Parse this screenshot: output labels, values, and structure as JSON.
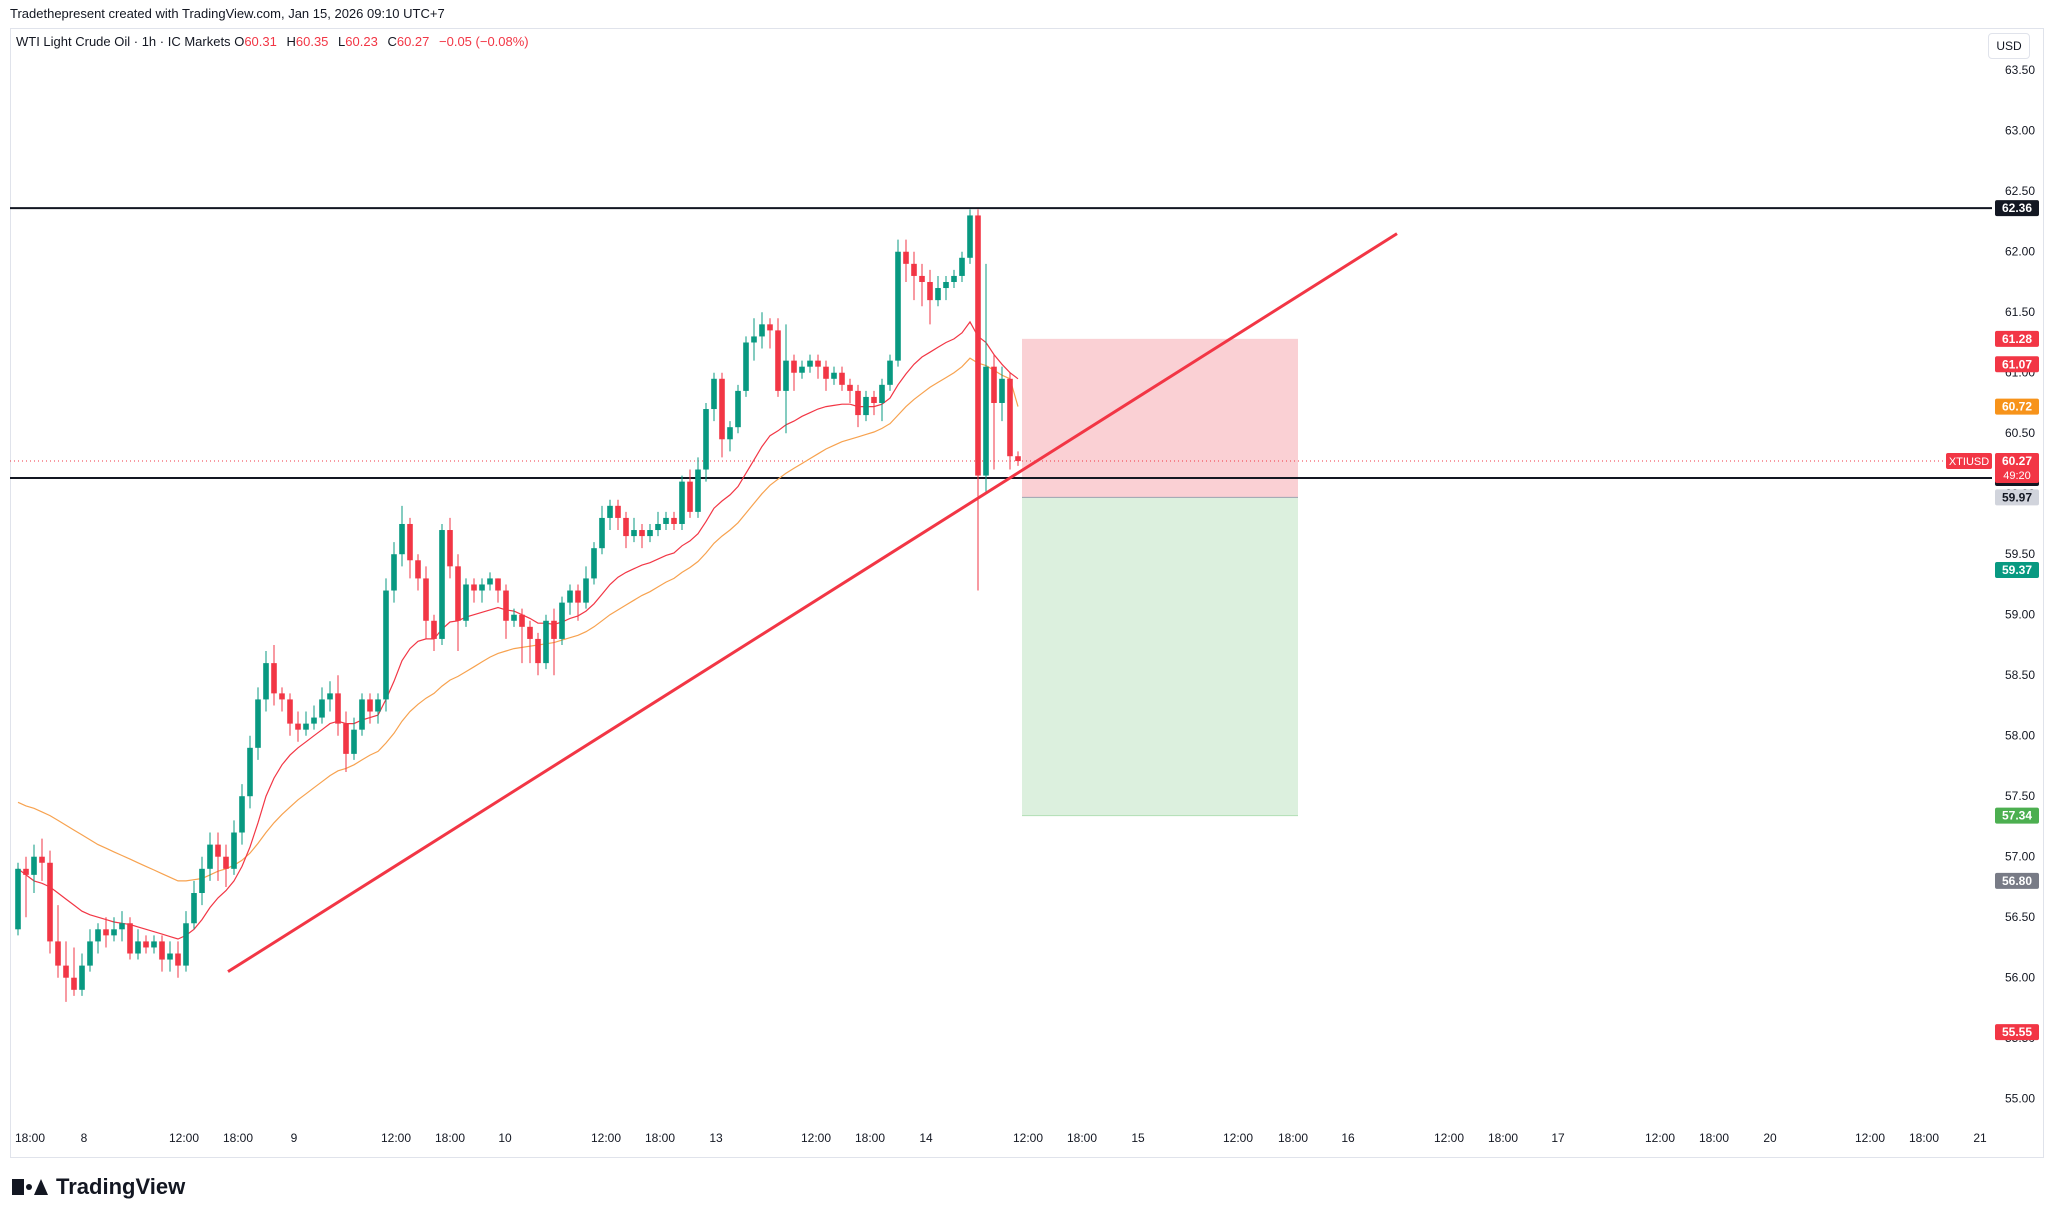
{
  "header": {
    "caption": "Tradethepresent created with TradingView.com, Jan 15, 2026 09:10 UTC+7"
  },
  "symbol": {
    "name": "WTI Light Crude Oil · 1h · IC Markets",
    "o_label": "O",
    "o_value": "60.31",
    "h_label": "H",
    "h_value": "60.35",
    "l_label": "L",
    "l_value": "60.23",
    "c_label": "C",
    "c_value": "60.27",
    "change": "−0.05 (−0.08%)"
  },
  "currency": "USD",
  "footer": {
    "brand": "TradingView",
    "logo_icon": "tradingview-logo-icon"
  },
  "colors": {
    "up": "#089981",
    "down": "#f23645",
    "trendline": "#f23645",
    "level_line": "#131722",
    "stop_zone": "#f9c8cc",
    "target_zone": "#dcf0de",
    "ma_fast": "#f23645",
    "ma_slow": "#f7a24f"
  },
  "chart_data": {
    "type": "candlestick",
    "timeframe": "1h",
    "ylim": [
      54.7,
      63.75
    ],
    "y_ticks": [
      "63.50",
      "63.00",
      "62.50",
      "62.00",
      "61.50",
      "61.00",
      "60.50",
      "60.00",
      "59.50",
      "59.00",
      "58.50",
      "58.00",
      "57.50",
      "57.00",
      "56.50",
      "56.00",
      "55.50",
      "55.00"
    ],
    "x_ticks": [
      "18:00",
      "8",
      "12:00",
      "18:00",
      "9",
      "12:00",
      "18:00",
      "10",
      "12:00",
      "18:00",
      "13",
      "12:00",
      "18:00",
      "14",
      "12:00",
      "18:00",
      "15",
      "12:00",
      "18:00",
      "16",
      "12:00",
      "18:00",
      "17",
      "12:00",
      "18:00",
      "20",
      "12:00",
      "18:00",
      "21"
    ],
    "candles": [
      [
        56.4,
        56.9,
        56.35,
        56.95
      ],
      [
        56.9,
        56.85,
        56.5,
        57.0
      ],
      [
        56.85,
        57.0,
        56.7,
        57.1
      ],
      [
        57.0,
        56.95,
        56.8,
        57.15
      ],
      [
        56.95,
        56.3,
        56.2,
        57.05
      ],
      [
        56.3,
        56.1,
        56.0,
        56.6
      ],
      [
        56.1,
        56.0,
        55.8,
        56.3
      ],
      [
        56.0,
        55.9,
        55.85,
        56.25
      ],
      [
        55.9,
        56.1,
        55.85,
        56.2
      ],
      [
        56.1,
        56.3,
        56.05,
        56.4
      ],
      [
        56.3,
        56.4,
        56.2,
        56.45
      ],
      [
        56.4,
        56.35,
        56.25,
        56.5
      ],
      [
        56.35,
        56.4,
        56.3,
        56.5
      ],
      [
        56.4,
        56.45,
        56.3,
        56.55
      ],
      [
        56.45,
        56.2,
        56.15,
        56.5
      ],
      [
        56.2,
        56.3,
        56.15,
        56.4
      ],
      [
        56.3,
        56.25,
        56.2,
        56.35
      ],
      [
        56.25,
        56.3,
        56.2,
        56.35
      ],
      [
        56.3,
        56.15,
        56.05,
        56.35
      ],
      [
        56.15,
        56.2,
        56.05,
        56.3
      ],
      [
        56.2,
        56.1,
        56.0,
        56.3
      ],
      [
        56.1,
        56.45,
        56.05,
        56.55
      ],
      [
        56.45,
        56.7,
        56.4,
        56.8
      ],
      [
        56.7,
        56.9,
        56.6,
        57.0
      ],
      [
        56.9,
        57.1,
        56.8,
        57.2
      ],
      [
        57.1,
        57.0,
        56.8,
        57.2
      ],
      [
        57.0,
        56.9,
        56.75,
        57.1
      ],
      [
        56.9,
        57.2,
        56.85,
        57.3
      ],
      [
        57.2,
        57.5,
        57.1,
        57.6
      ],
      [
        57.5,
        57.9,
        57.4,
        58.0
      ],
      [
        57.9,
        58.3,
        57.8,
        58.4
      ],
      [
        58.3,
        58.6,
        58.2,
        58.7
      ],
      [
        58.6,
        58.35,
        58.25,
        58.75
      ],
      [
        58.35,
        58.3,
        58.2,
        58.4
      ],
      [
        58.3,
        58.1,
        58.0,
        58.35
      ],
      [
        58.1,
        58.05,
        57.95,
        58.2
      ],
      [
        58.05,
        58.1,
        58.0,
        58.2
      ],
      [
        58.1,
        58.15,
        58.05,
        58.25
      ],
      [
        58.15,
        58.3,
        58.1,
        58.4
      ],
      [
        58.3,
        58.35,
        58.2,
        58.45
      ],
      [
        58.35,
        58.1,
        58.0,
        58.5
      ],
      [
        58.1,
        57.85,
        57.7,
        58.2
      ],
      [
        57.85,
        58.05,
        57.8,
        58.15
      ],
      [
        58.05,
        58.3,
        58.0,
        58.35
      ],
      [
        58.3,
        58.2,
        58.1,
        58.35
      ],
      [
        58.2,
        58.3,
        58.1,
        58.35
      ],
      [
        58.3,
        59.2,
        58.2,
        59.3
      ],
      [
        59.2,
        59.5,
        59.1,
        59.6
      ],
      [
        59.5,
        59.75,
        59.4,
        59.9
      ],
      [
        59.75,
        59.45,
        59.3,
        59.8
      ],
      [
        59.45,
        59.3,
        59.2,
        59.5
      ],
      [
        59.3,
        58.95,
        58.8,
        59.4
      ],
      [
        58.95,
        58.8,
        58.7,
        59.0
      ],
      [
        58.8,
        59.7,
        58.75,
        59.75
      ],
      [
        59.7,
        59.4,
        59.3,
        59.8
      ],
      [
        59.4,
        58.95,
        58.7,
        59.5
      ],
      [
        58.95,
        59.25,
        58.9,
        59.3
      ],
      [
        59.25,
        59.2,
        59.1,
        59.3
      ],
      [
        59.2,
        59.25,
        59.1,
        59.3
      ],
      [
        59.25,
        59.3,
        59.2,
        59.35
      ],
      [
        59.3,
        59.2,
        59.1,
        59.3
      ],
      [
        59.2,
        58.95,
        58.8,
        59.25
      ],
      [
        58.95,
        59.0,
        58.9,
        59.05
      ],
      [
        59.0,
        58.9,
        58.6,
        59.05
      ],
      [
        58.9,
        58.8,
        58.6,
        58.95
      ],
      [
        58.8,
        58.6,
        58.5,
        58.85
      ],
      [
        58.6,
        58.95,
        58.55,
        59.0
      ],
      [
        58.95,
        58.8,
        58.5,
        59.05
      ],
      [
        58.8,
        59.1,
        58.75,
        59.15
      ],
      [
        59.1,
        59.2,
        59.0,
        59.25
      ],
      [
        59.2,
        59.1,
        58.95,
        59.25
      ],
      [
        59.1,
        59.3,
        59.05,
        59.4
      ],
      [
        59.3,
        59.55,
        59.25,
        59.6
      ],
      [
        59.55,
        59.8,
        59.5,
        59.9
      ],
      [
        59.8,
        59.9,
        59.7,
        59.95
      ],
      [
        59.9,
        59.8,
        59.7,
        59.95
      ],
      [
        59.8,
        59.65,
        59.55,
        59.85
      ],
      [
        59.65,
        59.7,
        59.6,
        59.8
      ],
      [
        59.7,
        59.65,
        59.55,
        59.75
      ],
      [
        59.65,
        59.7,
        59.6,
        59.75
      ],
      [
        59.7,
        59.75,
        59.65,
        59.85
      ],
      [
        59.75,
        59.8,
        59.7,
        59.85
      ],
      [
        59.8,
        59.75,
        59.7,
        59.85
      ],
      [
        59.75,
        60.1,
        59.7,
        60.15
      ],
      [
        60.1,
        59.85,
        59.8,
        60.2
      ],
      [
        59.85,
        60.2,
        59.8,
        60.3
      ],
      [
        60.2,
        60.7,
        60.1,
        60.75
      ],
      [
        60.7,
        60.95,
        60.6,
        61.0
      ],
      [
        60.95,
        60.45,
        60.3,
        61.0
      ],
      [
        60.45,
        60.55,
        60.35,
        60.6
      ],
      [
        60.55,
        60.85,
        60.5,
        60.9
      ],
      [
        60.85,
        61.25,
        60.8,
        61.3
      ],
      [
        61.25,
        61.3,
        61.1,
        61.45
      ],
      [
        61.3,
        61.4,
        61.2,
        61.5
      ],
      [
        61.4,
        61.35,
        61.2,
        61.45
      ],
      [
        61.35,
        60.85,
        60.8,
        61.45
      ],
      [
        60.85,
        61.1,
        60.5,
        61.4
      ],
      [
        61.1,
        61.0,
        60.85,
        61.15
      ],
      [
        61.0,
        61.05,
        60.95,
        61.1
      ],
      [
        61.05,
        61.1,
        61.0,
        61.15
      ],
      [
        61.1,
        61.05,
        60.95,
        61.15
      ],
      [
        61.05,
        60.95,
        60.85,
        61.1
      ],
      [
        60.95,
        61.0,
        60.9,
        61.05
      ],
      [
        61.0,
        60.9,
        60.85,
        61.05
      ],
      [
        60.9,
        60.85,
        60.75,
        60.95
      ],
      [
        60.85,
        60.65,
        60.55,
        60.9
      ],
      [
        60.65,
        60.8,
        60.6,
        60.85
      ],
      [
        60.8,
        60.75,
        60.65,
        60.85
      ],
      [
        60.75,
        60.9,
        60.6,
        60.95
      ],
      [
        60.9,
        61.1,
        60.85,
        61.15
      ],
      [
        61.1,
        62.0,
        61.05,
        62.1
      ],
      [
        62.0,
        61.9,
        61.75,
        62.1
      ],
      [
        61.9,
        61.8,
        61.6,
        62.0
      ],
      [
        61.8,
        61.75,
        61.55,
        61.9
      ],
      [
        61.75,
        61.6,
        61.4,
        61.85
      ],
      [
        61.6,
        61.7,
        61.55,
        61.8
      ],
      [
        61.7,
        61.75,
        61.6,
        61.8
      ],
      [
        61.75,
        61.8,
        61.7,
        61.85
      ],
      [
        61.8,
        61.95,
        61.75,
        62.0
      ],
      [
        61.95,
        62.3,
        61.9,
        62.35
      ],
      [
        62.3,
        60.15,
        59.2,
        62.35
      ],
      [
        60.15,
        61.05,
        60.0,
        61.9
      ],
      [
        61.05,
        60.75,
        60.2,
        61.15
      ],
      [
        60.75,
        60.95,
        60.6,
        61.05
      ],
      [
        60.95,
        60.31,
        60.2,
        61.0
      ],
      [
        60.31,
        60.27,
        60.23,
        60.35
      ]
    ],
    "ma_fast": [
      56.9,
      56.85,
      56.8,
      56.78,
      56.75,
      56.7,
      56.65,
      56.6,
      56.55,
      56.52,
      56.5,
      56.48,
      56.46,
      56.45,
      56.44,
      56.42,
      56.4,
      56.38,
      56.36,
      56.34,
      56.32,
      56.35,
      56.4,
      56.48,
      56.58,
      56.66,
      56.72,
      56.8,
      56.92,
      57.08,
      57.28,
      57.5,
      57.65,
      57.76,
      57.84,
      57.9,
      57.95,
      58.0,
      58.05,
      58.1,
      58.12,
      58.1,
      58.1,
      58.13,
      58.15,
      58.17,
      58.3,
      58.45,
      58.62,
      58.72,
      58.78,
      58.8,
      58.8,
      58.88,
      58.94,
      58.95,
      58.98,
      59.0,
      59.02,
      59.04,
      59.06,
      59.04,
      59.03,
      59.0,
      58.97,
      58.93,
      58.93,
      58.92,
      58.94,
      58.97,
      58.99,
      59.03,
      59.09,
      59.17,
      59.25,
      59.31,
      59.35,
      59.38,
      59.41,
      59.43,
      59.46,
      59.49,
      59.51,
      59.57,
      59.61,
      59.67,
      59.77,
      59.88,
      59.94,
      59.99,
      60.06,
      60.17,
      60.28,
      60.39,
      60.48,
      60.52,
      60.57,
      60.6,
      60.64,
      60.67,
      60.7,
      60.72,
      60.73,
      60.74,
      60.74,
      60.72,
      60.72,
      60.72,
      60.74,
      60.79,
      60.9,
      60.99,
      61.07,
      61.13,
      61.17,
      61.21,
      61.25,
      61.28,
      61.33,
      61.42,
      61.3,
      61.25,
      61.15,
      61.07,
      61.0,
      60.95
    ],
    "ma_slow": [
      57.45,
      57.42,
      57.4,
      57.37,
      57.34,
      57.3,
      57.26,
      57.22,
      57.18,
      57.14,
      57.1,
      57.07,
      57.04,
      57.01,
      56.98,
      56.95,
      56.92,
      56.89,
      56.86,
      56.83,
      56.8,
      56.8,
      56.81,
      56.82,
      56.85,
      56.88,
      56.9,
      56.93,
      56.97,
      57.03,
      57.11,
      57.2,
      57.28,
      57.35,
      57.41,
      57.47,
      57.52,
      57.57,
      57.62,
      57.67,
      57.71,
      57.73,
      57.76,
      57.8,
      57.84,
      57.87,
      57.94,
      58.02,
      58.12,
      58.2,
      58.26,
      58.31,
      58.35,
      58.41,
      58.46,
      58.49,
      58.53,
      58.57,
      58.61,
      58.65,
      58.68,
      58.7,
      58.72,
      58.73,
      58.74,
      58.75,
      58.76,
      58.77,
      58.79,
      58.81,
      58.83,
      58.86,
      58.9,
      58.95,
      59.0,
      59.04,
      59.08,
      59.12,
      59.16,
      59.19,
      59.23,
      59.27,
      59.3,
      59.35,
      59.39,
      59.44,
      59.51,
      59.59,
      59.65,
      59.7,
      59.76,
      59.84,
      59.92,
      60.0,
      60.07,
      60.12,
      60.17,
      60.21,
      60.25,
      60.29,
      60.33,
      60.37,
      60.4,
      60.43,
      60.45,
      60.47,
      60.49,
      60.51,
      60.54,
      60.58,
      60.65,
      60.72,
      60.78,
      60.83,
      60.88,
      60.92,
      60.96,
      61.0,
      61.05,
      61.12,
      61.08,
      61.06,
      61.02,
      60.98,
      60.95,
      60.72
    ],
    "levels": [
      {
        "price": 62.36,
        "label": "62.36",
        "style": "black"
      },
      {
        "price": 60.13,
        "label": "60.13",
        "style": "black"
      }
    ],
    "trendline": {
      "from": [
        20,
        56.05
      ],
      "to": [
        153,
        62.15
      ]
    },
    "position": {
      "entry": 59.97,
      "stop": 61.28,
      "target": 57.34,
      "from_index": 126,
      "to_index": 160
    },
    "price_tags": [
      {
        "price": 61.28,
        "label": "61.28",
        "color": "#f23645"
      },
      {
        "price": 61.07,
        "label": "61.07",
        "color": "#f23645"
      },
      {
        "price": 60.72,
        "label": "60.72",
        "color": "#f7931a"
      },
      {
        "price": 60.27,
        "label": "60.27",
        "sub": "49:20",
        "color": "#f23645",
        "symbol": "XTIUSD"
      },
      {
        "price": 59.97,
        "label": "59.97",
        "color": "#d1d4dc",
        "text_color": "#131722"
      },
      {
        "price": 59.37,
        "label": "59.37",
        "color": "#089981"
      },
      {
        "price": 57.34,
        "label": "57.34",
        "color": "#4caf50"
      },
      {
        "price": 56.8,
        "label": "56.80",
        "color": "#787b86"
      },
      {
        "price": 55.55,
        "label": "55.55",
        "color": "#f23645"
      }
    ],
    "current_price": 60.27
  }
}
